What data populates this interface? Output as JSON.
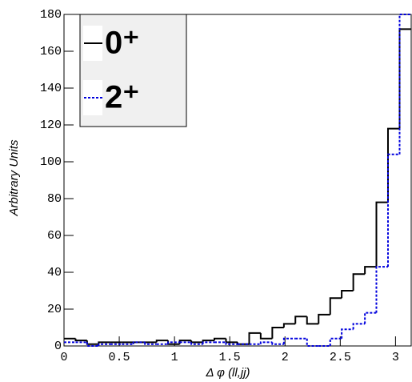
{
  "chart_data": {
    "type": "histogram",
    "x_label": "Δ φ (ll,jj)",
    "y_label": "Arbitrary Units",
    "bins": [
      0,
      0.105,
      0.209,
      0.314,
      0.419,
      0.524,
      0.628,
      0.733,
      0.838,
      0.942,
      1.047,
      1.152,
      1.257,
      1.361,
      1.466,
      1.571,
      1.676,
      1.78,
      1.885,
      1.99,
      2.094,
      2.199,
      2.304,
      2.409,
      2.513,
      2.618,
      2.723,
      2.827,
      2.932,
      3.037,
      3.142
    ],
    "series": [
      {
        "name": "0⁺",
        "color": "#000000",
        "dash": false,
        "values": [
          4,
          3,
          1,
          2,
          2,
          2,
          2,
          2,
          3,
          1,
          3,
          2,
          3,
          4,
          2,
          1,
          7,
          4,
          10,
          12,
          16,
          12,
          17,
          26,
          30,
          39,
          43,
          78,
          118,
          172
        ]
      },
      {
        "name": "2⁺",
        "color": "#0000dd",
        "dash": true,
        "values": [
          2,
          2,
          0,
          1,
          1,
          1,
          2,
          1,
          1,
          2,
          2,
          1,
          2,
          2,
          1,
          1,
          1,
          2,
          1,
          4,
          4,
          0,
          0,
          4,
          9,
          12,
          18,
          43,
          104,
          180
        ]
      }
    ],
    "xlim": [
      0,
      3.142
    ],
    "ylim": [
      0,
      180
    ],
    "xticks": [
      0,
      0.5,
      1,
      1.5,
      2,
      2.5,
      3
    ],
    "yticks": [
      0,
      20,
      40,
      60,
      80,
      100,
      120,
      140,
      160,
      180
    ],
    "legend": "top-left"
  }
}
